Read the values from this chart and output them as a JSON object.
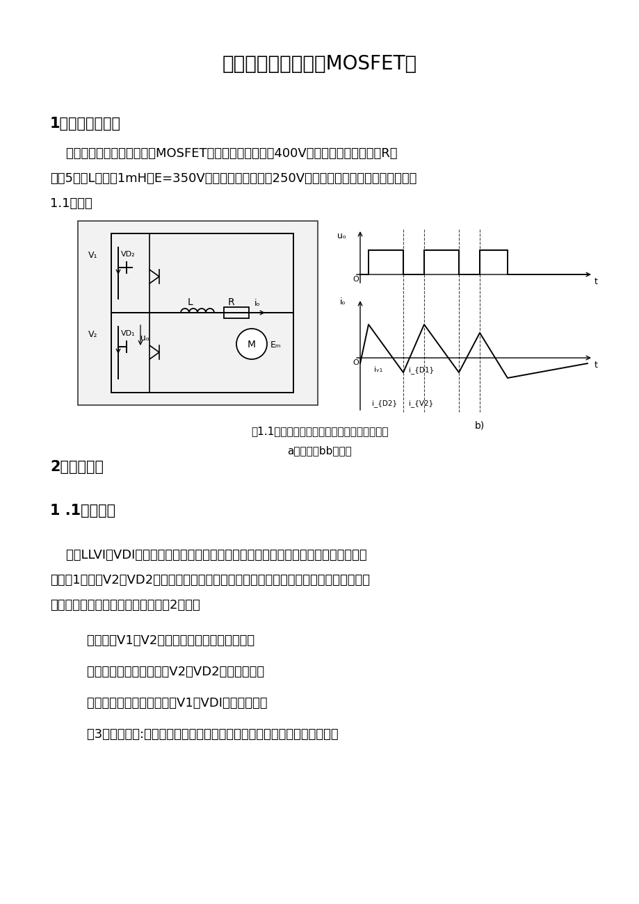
{
  "title_cn": "电流可逆斩波电路（MOSFET）",
  "bg_color": "#ffffff",
  "text_color": "#000000",
  "section1_title": "1设计要求与方案",
  "section1_para1": "    设计一电流可逆斩波电路（MOSFET），已知电源电压为400V，反电动势负载，其中R的",
  "section1_para2": "値为5。、L的値为1mH、E=350V，斩波电路输出电压250V。电流可逆斩波主电路原理图如图",
  "section1_para3": "1.1所示。",
  "fig_caption1": "图1.1电流可逆斩波电路的原理图及其工作波形",
  "fig_caption2": "a）电路图bb）波形",
  "section2_title": "2原理和参数",
  "section3_title": "1 .1设计原理",
  "body_para1": "    如图LLVI和VDI构成降压斩波电路，由电源向直流电动机供电，电动机为电动运行，工",
  "body_para2": "作于第1象限；V2和VD2构成升压斩波电路，把直流电动机的动能转变为电能反馈到电源，",
  "body_para3": "使电动机作再生制动运行，工作于第2象限。",
  "bullet1": "    必须防止V1和V2同时导通而导致的电源短路。",
  "bullet2": "    只作降压斩波器运行时，V2和VD2总处于断态；",
  "bullet3": "    只作升压斩波器运行时，则V1和VDI总处于断态；",
  "bullet4": "    第3种工作方式:一个周期内交替地作为降压斩波电路和升压斩波电路工作。"
}
